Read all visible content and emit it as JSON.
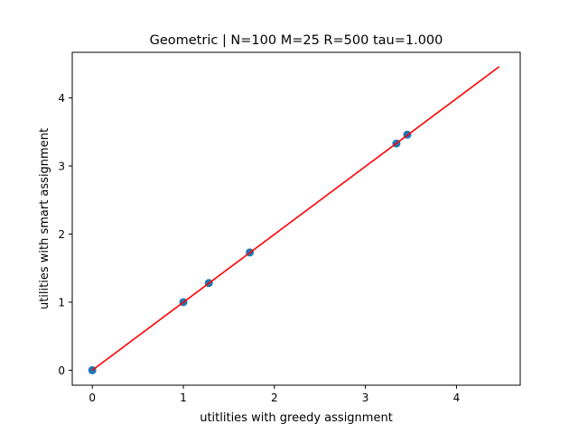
{
  "chart_data": {
    "type": "scatter",
    "title": "Geometric | N=100 M=25 R=500 tau=1.000",
    "xlabel": "utitlities with greedy assignment",
    "ylabel": "utilities with smart assignment",
    "xlim": [
      -0.22,
      4.7
    ],
    "ylim": [
      -0.22,
      4.67
    ],
    "xticks": [
      0,
      1,
      2,
      3,
      4
    ],
    "yticks": [
      0,
      1,
      2,
      3,
      4
    ],
    "grid": false,
    "series": [
      {
        "kind": "scatter",
        "color": "#1f77b4",
        "points": [
          {
            "x": 0.0,
            "y": 0.0
          },
          {
            "x": 1.0,
            "y": 1.0
          },
          {
            "x": 1.28,
            "y": 1.28
          },
          {
            "x": 1.73,
            "y": 1.73
          },
          {
            "x": 3.34,
            "y": 3.33
          },
          {
            "x": 3.46,
            "y": 3.46
          }
        ]
      },
      {
        "kind": "line",
        "color": "#ff0000",
        "points": [
          {
            "x": 0.0,
            "y": 0.0
          },
          {
            "x": 4.47,
            "y": 4.46
          }
        ]
      }
    ]
  }
}
